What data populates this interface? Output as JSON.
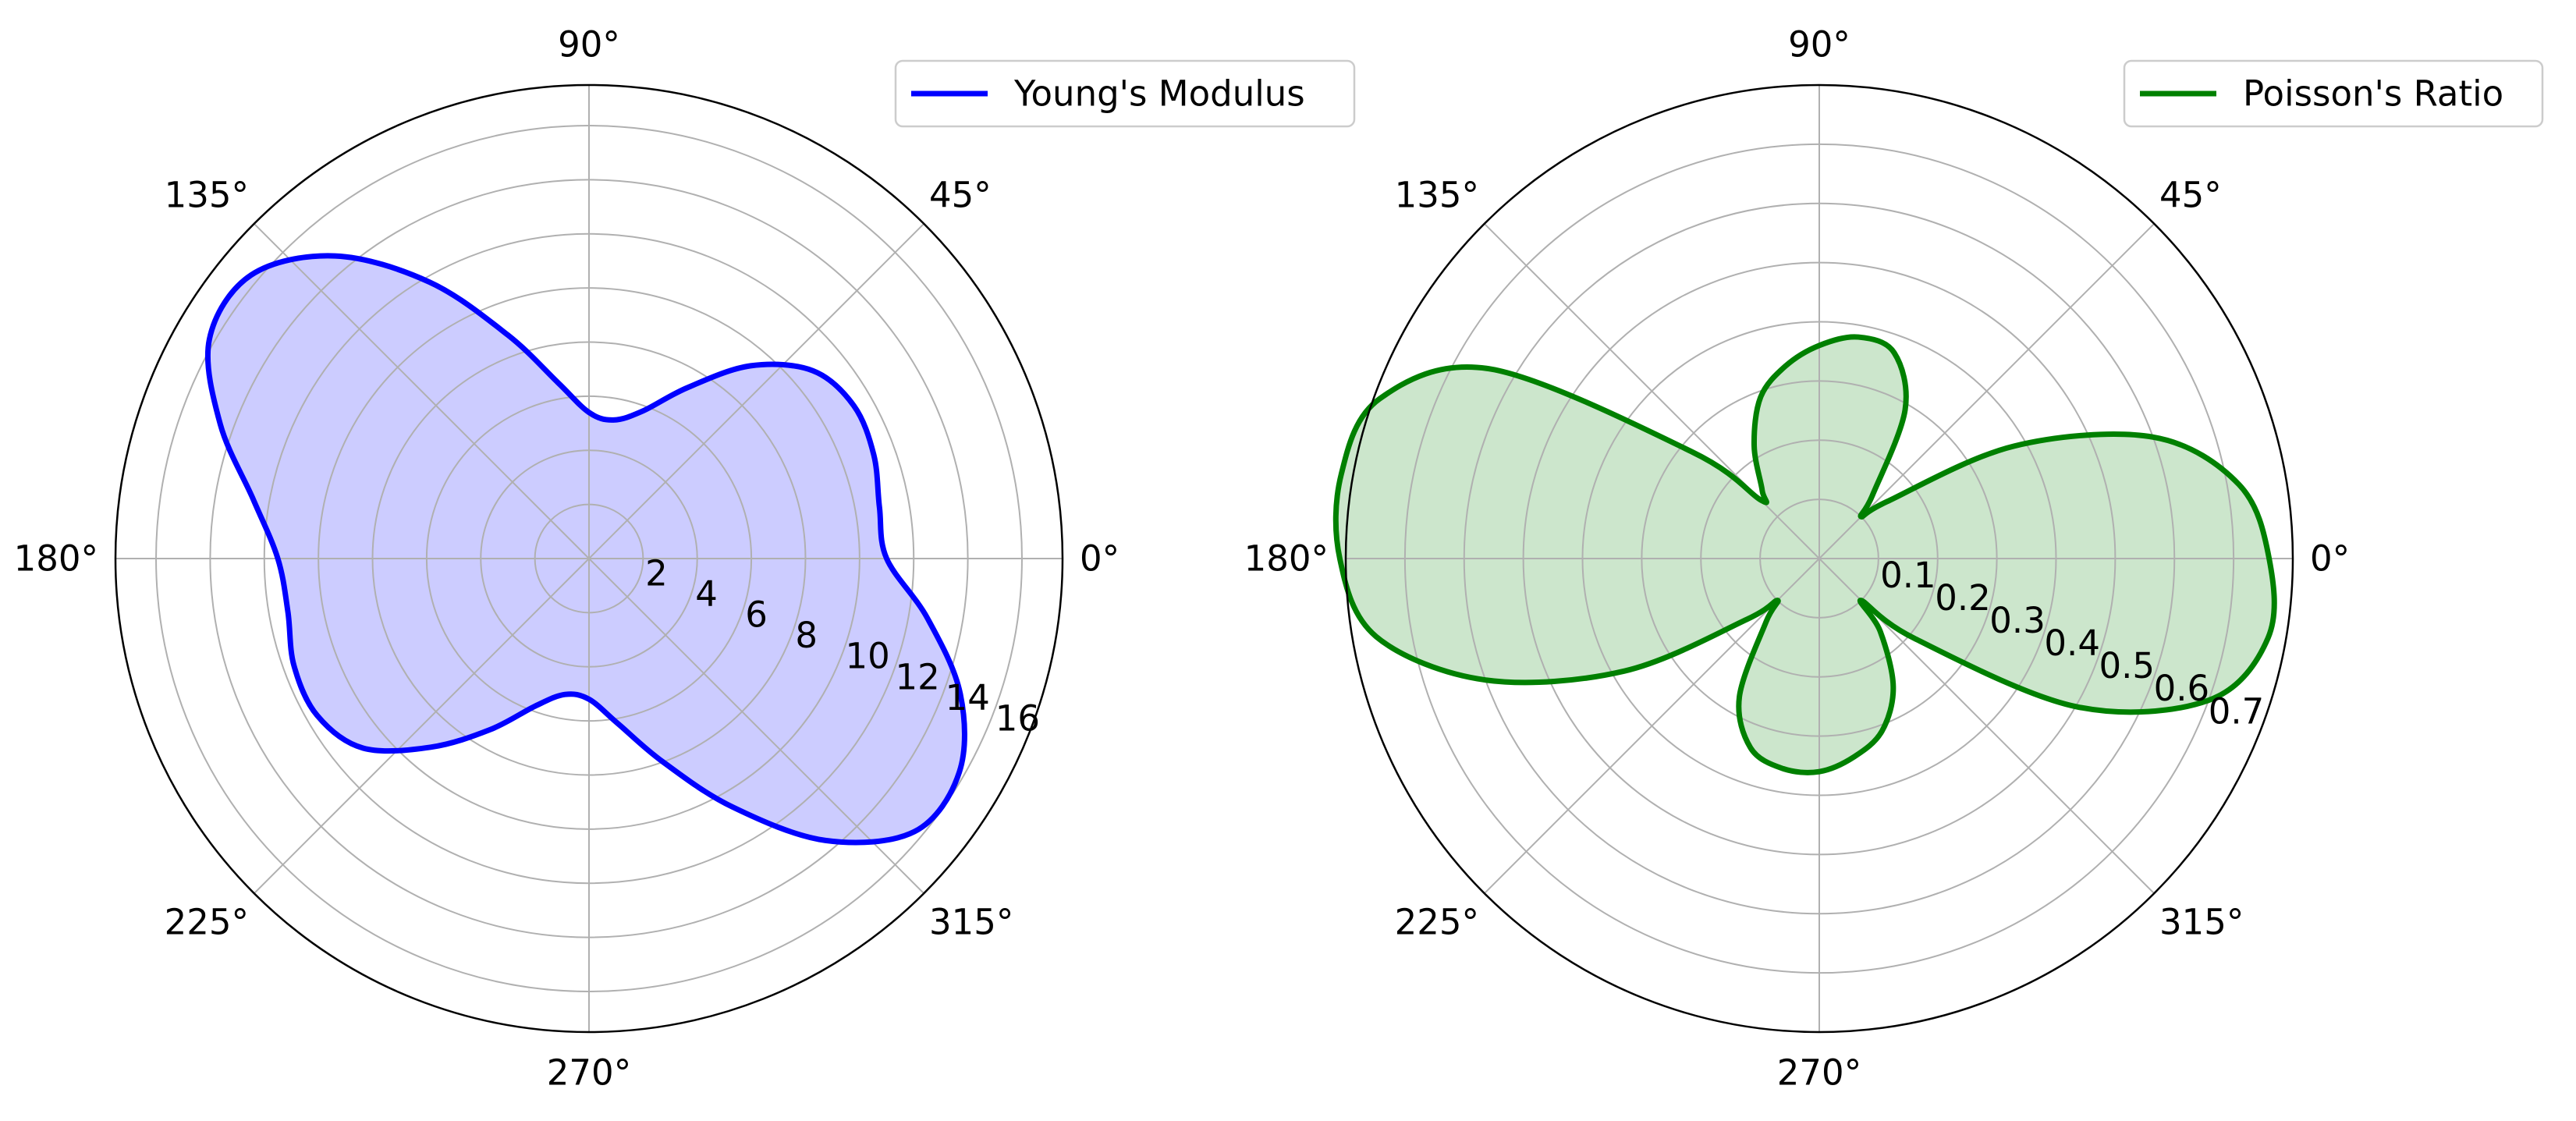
{
  "figure": {
    "background": "#ffffff"
  },
  "chart_data": [
    {
      "type": "polar-area",
      "theta_unit": "degrees",
      "r_range": [
        0,
        17.5
      ],
      "r_ticks": [
        2,
        4,
        6,
        8,
        10,
        12,
        14,
        16
      ],
      "r_tick_labels": [
        "2",
        "4",
        "6",
        "8",
        "10",
        "12",
        "14",
        "16"
      ],
      "angle_ticks": [
        0,
        45,
        90,
        135,
        180,
        225,
        270,
        315
      ],
      "angle_tick_labels": [
        "0°",
        "45°",
        "90°",
        "135°",
        "180°",
        "225°",
        "270°",
        "315°"
      ],
      "grid": true,
      "legend_position": "top-right",
      "series": [
        {
          "name": "Young's Modulus",
          "color": "#0000ff",
          "fill_color": "#ccccff",
          "theta": [
            0,
            10,
            20,
            30,
            40,
            50,
            60,
            70,
            80,
            90,
            100,
            110,
            120,
            130,
            140,
            150,
            160,
            170,
            180,
            190,
            200,
            210,
            220,
            230,
            240,
            250,
            260,
            270,
            280,
            290,
            300,
            310,
            320,
            330,
            340,
            350,
            360
          ],
          "r": [
            11.0,
            10.9,
            11.2,
            11.3,
            10.8,
            9.3,
            7.3,
            5.8,
            5.2,
            5.4,
            6.6,
            8.8,
            11.8,
            14.6,
            16.3,
            16.2,
            14.5,
            12.6,
            11.5,
            11.3,
            11.6,
            11.6,
            10.9,
            9.1,
            7.3,
            5.8,
            5.1,
            5.2,
            6.2,
            8.0,
            10.6,
            13.6,
            15.7,
            15.8,
            14.6,
            12.7,
            11.0
          ]
        }
      ]
    },
    {
      "type": "polar-area",
      "theta_unit": "degrees",
      "r_range": [
        0,
        0.8
      ],
      "r_ticks": [
        0.1,
        0.2,
        0.3,
        0.4,
        0.5,
        0.6,
        0.7
      ],
      "r_tick_labels": [
        "0.1",
        "0.2",
        "0.3",
        "0.4",
        "0.5",
        "0.6",
        "0.7"
      ],
      "angle_ticks": [
        0,
        45,
        90,
        135,
        180,
        225,
        270,
        315
      ],
      "angle_tick_labels": [
        "0°",
        "45°",
        "90°",
        "135°",
        "180°",
        "225°",
        "270°",
        "315°"
      ],
      "grid": true,
      "legend_position": "top-right",
      "series": [
        {
          "name": "Poisson's Ratio",
          "color": "#008000",
          "fill_color": "#cce6cc",
          "theta": [
            0,
            10,
            20,
            30,
            40,
            45,
            50,
            60,
            70,
            80,
            90,
            100,
            110,
            120,
            130,
            135,
            140,
            150,
            160,
            170,
            180,
            190,
            200,
            210,
            220,
            225,
            230,
            240,
            250,
            260,
            270,
            280,
            290,
            300,
            310,
            315,
            320,
            330,
            340,
            350,
            360
          ],
          "r": [
            0.76,
            0.72,
            0.6,
            0.38,
            0.15,
            0.1,
            0.14,
            0.29,
            0.37,
            0.38,
            0.36,
            0.33,
            0.29,
            0.22,
            0.15,
            0.14,
            0.28,
            0.64,
            0.79,
            0.82,
            0.81,
            0.76,
            0.6,
            0.38,
            0.16,
            0.1,
            0.14,
            0.27,
            0.34,
            0.36,
            0.36,
            0.34,
            0.31,
            0.25,
            0.16,
            0.1,
            0.21,
            0.5,
            0.7,
            0.77,
            0.76
          ]
        }
      ]
    }
  ]
}
